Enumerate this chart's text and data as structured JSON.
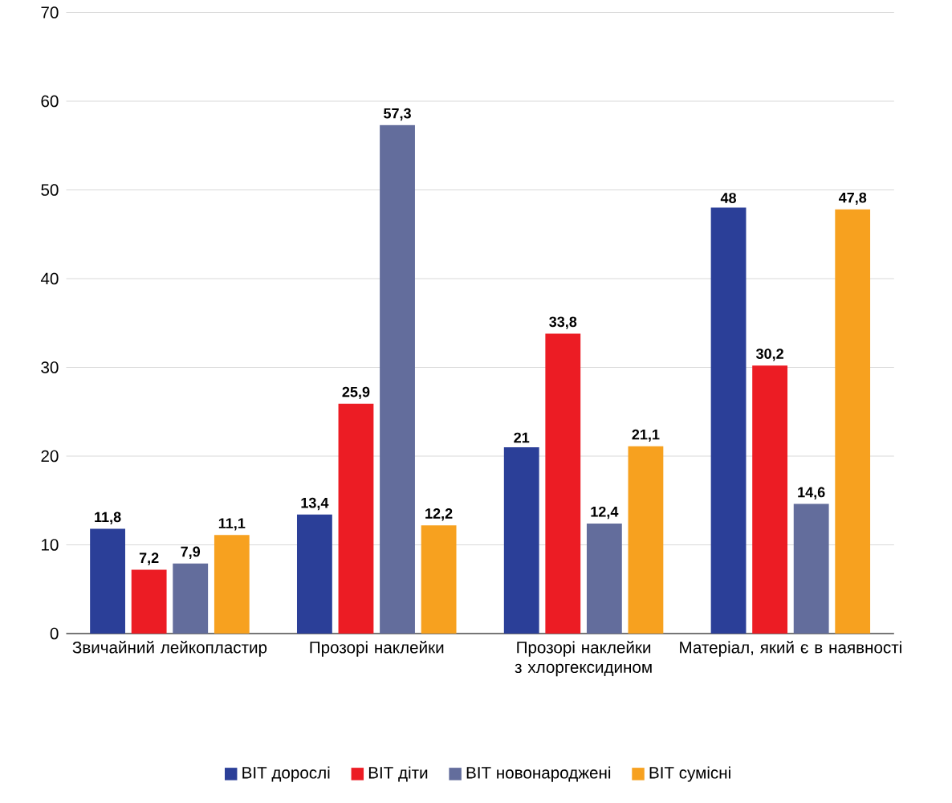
{
  "chart_data": {
    "type": "bar",
    "categories": [
      "Звичайний лейкопластир",
      "Прозорі наклейки",
      "Прозорі наклейки з хлоргексидином",
      "Матеріал, який є в наявності"
    ],
    "series": [
      {
        "name": "ВІТ дорослі",
        "color": "#2b3f98",
        "values": [
          11.8,
          13.4,
          21,
          48
        ],
        "value_labels": [
          "11,8",
          "13,4",
          "21",
          "48"
        ]
      },
      {
        "name": "ВІТ діти",
        "color": "#ec1c24",
        "values": [
          7.2,
          25.9,
          33.8,
          30.2
        ],
        "value_labels": [
          "7,2",
          "25,9",
          "33,8",
          "30,2"
        ]
      },
      {
        "name": "ВІТ новонароджені",
        "color": "#636d9c",
        "values": [
          7.9,
          57.3,
          12.4,
          14.6
        ],
        "value_labels": [
          "7,9",
          "57,3",
          "12,4",
          "14,6"
        ]
      },
      {
        "name": "ВІТ сумісні",
        "color": "#f7a11f",
        "values": [
          11.1,
          12.2,
          21.1,
          47.8
        ],
        "value_labels": [
          "11,1",
          "12,2",
          "21,1",
          "47,8"
        ]
      }
    ],
    "ylim": [
      0,
      70
    ],
    "yticks": [
      0,
      10,
      20,
      30,
      40,
      50,
      60,
      70
    ],
    "grid": "y",
    "legend": "bottom"
  }
}
